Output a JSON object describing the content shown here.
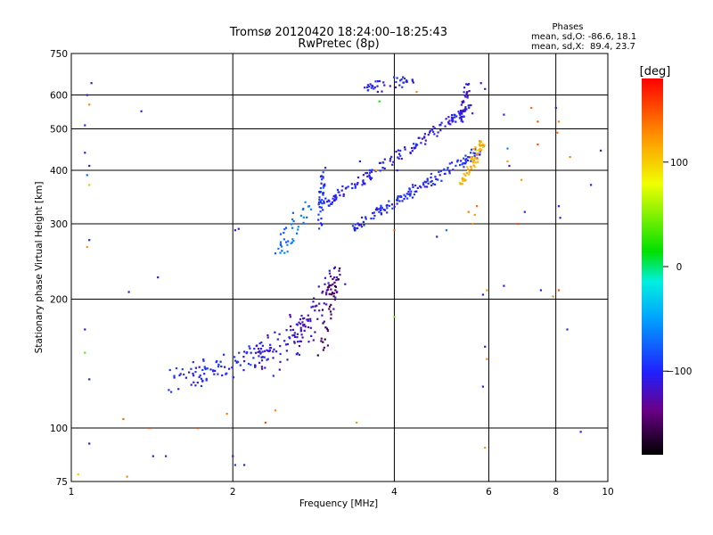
{
  "chart_data": {
    "type": "scatter",
    "title": "Tromsø 20120420 18:24:00–18:25:43",
    "subtitle": "RwPretec (8p)",
    "xlabel": "Frequency [MHz]",
    "ylabel": "Stationary phase Virtual Height [km]",
    "x_scale": "log",
    "y_scale": "log",
    "xlim": [
      1,
      10
    ],
    "ylim": [
      75,
      750
    ],
    "x_ticks": [
      1,
      2,
      4,
      6,
      8,
      10
    ],
    "x_tick_labels": [
      "1",
      "2",
      "4",
      "6",
      "8",
      "10"
    ],
    "y_ticks": [
      75,
      100,
      200,
      300,
      400,
      500,
      600,
      750
    ],
    "y_tick_labels": [
      "75",
      "100",
      "200",
      "300",
      "400",
      "500",
      "600",
      "750"
    ],
    "grid": true,
    "stats": {
      "header": "Phases",
      "line_o": "mean, sd,O: -86.6, 18.1",
      "line_x": "mean, sd,X:  89.4, 23.7"
    },
    "colorbar": {
      "label": "[deg]",
      "range": [
        -180,
        180
      ],
      "tick_values": [
        100,
        0,
        -100
      ],
      "tick_labels": [
        "100",
        "0",
        "−100"
      ]
    },
    "segments": [
      {
        "name": "o-trace",
        "phase": -105,
        "from": [
          2.93,
          330
        ],
        "to": [
          5.55,
          560
        ],
        "n": 160,
        "jitter": 0.012
      },
      {
        "name": "o-trace-upper",
        "phase": -110,
        "from": [
          5.3,
          520
        ],
        "to": [
          5.5,
          640
        ],
        "n": 30,
        "jitter": 0.01
      },
      {
        "name": "x-trace",
        "phase": -100,
        "from": [
          3.3,
          290
        ],
        "to": [
          5.85,
          450
        ],
        "n": 150,
        "jitter": 0.012
      },
      {
        "name": "x-trace-yellow",
        "phase": 110,
        "from": [
          5.35,
          370
        ],
        "to": [
          5.85,
          470
        ],
        "n": 60,
        "jitter": 0.012
      },
      {
        "name": "f1-lower",
        "phase": -100,
        "from": [
          1.55,
          128
        ],
        "to": [
          2.3,
          150
        ],
        "n": 90,
        "jitter": 0.03
      },
      {
        "name": "f1-mid",
        "phase": -110,
        "from": [
          2.2,
          140
        ],
        "to": [
          2.8,
          175
        ],
        "n": 70,
        "jitter": 0.04
      },
      {
        "name": "f1-upper",
        "phase": -120,
        "from": [
          2.6,
          165
        ],
        "to": [
          3.15,
          225
        ],
        "n": 70,
        "jitter": 0.035
      },
      {
        "name": "f1-dark",
        "phase": -150,
        "from": [
          2.9,
          150
        ],
        "to": [
          3.15,
          240
        ],
        "n": 40,
        "jitter": 0.02
      },
      {
        "name": "f-vertical",
        "phase": -95,
        "from": [
          2.9,
          290
        ],
        "to": [
          2.95,
          400
        ],
        "n": 40,
        "jitter": 0.01
      },
      {
        "name": "f-cyan",
        "phase": -70,
        "from": [
          2.45,
          260
        ],
        "to": [
          2.75,
          330
        ],
        "n": 40,
        "jitter": 0.02
      },
      {
        "name": "top-cluster",
        "phase": -105,
        "from": [
          3.5,
          620
        ],
        "to": [
          4.3,
          650
        ],
        "n": 40,
        "jitter": 0.015
      }
    ],
    "points": [
      {
        "x": 1.07,
        "y": 600,
        "phase": -110
      },
      {
        "x": 1.09,
        "y": 640,
        "phase": -120
      },
      {
        "x": 1.06,
        "y": 510,
        "phase": -95
      },
      {
        "x": 1.06,
        "y": 440,
        "phase": -110
      },
      {
        "x": 1.08,
        "y": 410,
        "phase": -120
      },
      {
        "x": 1.07,
        "y": 390,
        "phase": -70
      },
      {
        "x": 1.08,
        "y": 370,
        "phase": 110
      },
      {
        "x": 1.08,
        "y": 570,
        "phase": 130
      },
      {
        "x": 1.08,
        "y": 275,
        "phase": -100
      },
      {
        "x": 1.07,
        "y": 265,
        "phase": 120
      },
      {
        "x": 1.06,
        "y": 170,
        "phase": -110
      },
      {
        "x": 1.06,
        "y": 150,
        "phase": 40
      },
      {
        "x": 1.08,
        "y": 130,
        "phase": -100
      },
      {
        "x": 1.08,
        "y": 92,
        "phase": -110
      },
      {
        "x": 1.03,
        "y": 78,
        "phase": 100
      },
      {
        "x": 1.35,
        "y": 550,
        "phase": -110
      },
      {
        "x": 1.28,
        "y": 208,
        "phase": -110
      },
      {
        "x": 1.45,
        "y": 225,
        "phase": -120
      },
      {
        "x": 1.25,
        "y": 105,
        "phase": 140
      },
      {
        "x": 1.4,
        "y": 100,
        "phase": 150
      },
      {
        "x": 1.42,
        "y": 86,
        "phase": -110
      },
      {
        "x": 1.5,
        "y": 86,
        "phase": -95
      },
      {
        "x": 1.27,
        "y": 77,
        "phase": 130
      },
      {
        "x": 1.72,
        "y": 100,
        "phase": 150
      },
      {
        "x": 1.95,
        "y": 108,
        "phase": 130
      },
      {
        "x": 2.0,
        "y": 86,
        "phase": -130
      },
      {
        "x": 2.02,
        "y": 82,
        "phase": -95
      },
      {
        "x": 2.1,
        "y": 82,
        "phase": -110
      },
      {
        "x": 2.02,
        "y": 290,
        "phase": -100
      },
      {
        "x": 2.05,
        "y": 292,
        "phase": -110
      },
      {
        "x": 2.3,
        "y": 103,
        "phase": 150
      },
      {
        "x": 2.4,
        "y": 110,
        "phase": 130
      },
      {
        "x": 3.4,
        "y": 103,
        "phase": 120
      },
      {
        "x": 4.0,
        "y": 182,
        "phase": 40
      },
      {
        "x": 4.0,
        "y": 290,
        "phase": 150
      },
      {
        "x": 4.05,
        "y": 400,
        "phase": -110
      },
      {
        "x": 3.7,
        "y": 400,
        "phase": 120
      },
      {
        "x": 3.45,
        "y": 420,
        "phase": -100
      },
      {
        "x": 3.75,
        "y": 580,
        "phase": 20
      },
      {
        "x": 4.4,
        "y": 610,
        "phase": 130
      },
      {
        "x": 5.0,
        "y": 290,
        "phase": -70
      },
      {
        "x": 4.8,
        "y": 280,
        "phase": -100
      },
      {
        "x": 5.6,
        "y": 300,
        "phase": 130
      },
      {
        "x": 5.7,
        "y": 330,
        "phase": 140
      },
      {
        "x": 5.65,
        "y": 315,
        "phase": 120
      },
      {
        "x": 5.5,
        "y": 320,
        "phase": 130
      },
      {
        "x": 5.9,
        "y": 620,
        "phase": -110
      },
      {
        "x": 5.8,
        "y": 640,
        "phase": -120
      },
      {
        "x": 5.85,
        "y": 205,
        "phase": -100
      },
      {
        "x": 5.95,
        "y": 210,
        "phase": 120
      },
      {
        "x": 5.9,
        "y": 155,
        "phase": -100
      },
      {
        "x": 5.95,
        "y": 145,
        "phase": 130
      },
      {
        "x": 5.85,
        "y": 125,
        "phase": -110
      },
      {
        "x": 5.9,
        "y": 90,
        "phase": 120
      },
      {
        "x": 6.4,
        "y": 540,
        "phase": -100
      },
      {
        "x": 6.5,
        "y": 450,
        "phase": -60
      },
      {
        "x": 6.5,
        "y": 420,
        "phase": 120
      },
      {
        "x": 6.55,
        "y": 410,
        "phase": -110
      },
      {
        "x": 6.9,
        "y": 380,
        "phase": 120
      },
      {
        "x": 7.0,
        "y": 320,
        "phase": -100
      },
      {
        "x": 6.8,
        "y": 300,
        "phase": 150
      },
      {
        "x": 6.4,
        "y": 215,
        "phase": -110
      },
      {
        "x": 7.4,
        "y": 520,
        "phase": 150
      },
      {
        "x": 7.4,
        "y": 460,
        "phase": 150
      },
      {
        "x": 7.2,
        "y": 560,
        "phase": 140
      },
      {
        "x": 8.0,
        "y": 560,
        "phase": -110
      },
      {
        "x": 8.1,
        "y": 520,
        "phase": 130
      },
      {
        "x": 8.05,
        "y": 490,
        "phase": 140
      },
      {
        "x": 8.1,
        "y": 330,
        "phase": -100
      },
      {
        "x": 8.15,
        "y": 310,
        "phase": -110
      },
      {
        "x": 7.5,
        "y": 210,
        "phase": -100
      },
      {
        "x": 8.1,
        "y": 210,
        "phase": 150
      },
      {
        "x": 7.9,
        "y": 203,
        "phase": 130
      },
      {
        "x": 8.4,
        "y": 170,
        "phase": -100
      },
      {
        "x": 8.9,
        "y": 98,
        "phase": -110
      },
      {
        "x": 9.3,
        "y": 370,
        "phase": -100
      },
      {
        "x": 9.7,
        "y": 445,
        "phase": -110
      },
      {
        "x": 8.5,
        "y": 430,
        "phase": 130
      }
    ]
  }
}
